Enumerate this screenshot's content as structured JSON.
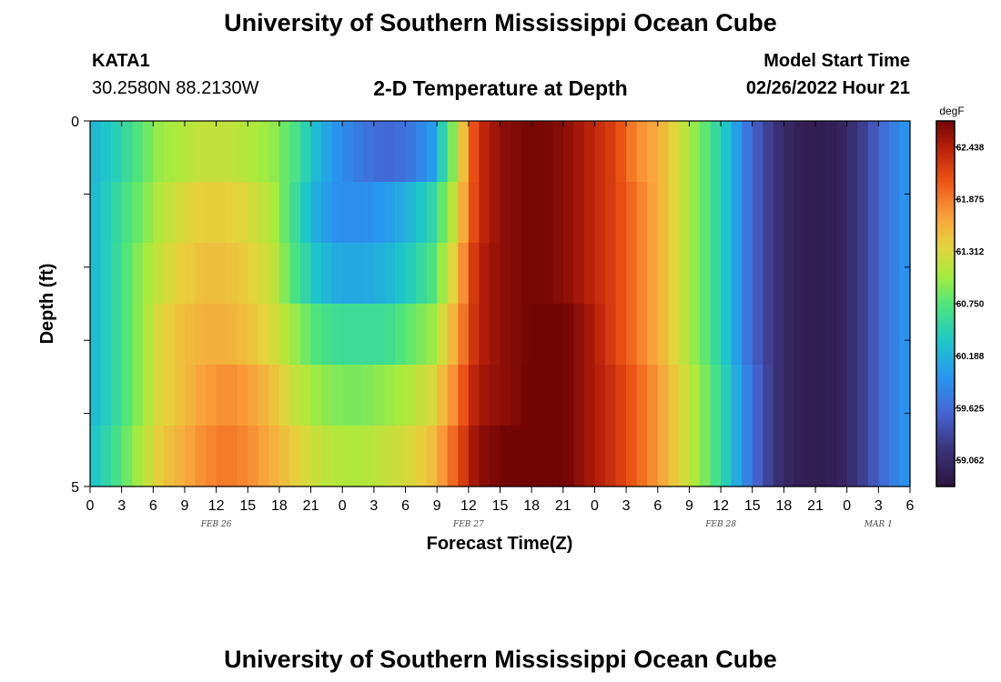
{
  "page": {
    "title_top": "University of Southern Mississippi Ocean Cube",
    "title_bottom": "University of Southern Mississippi Ocean Cube",
    "station": "KATA1",
    "coords": "30.2580N  88.2130W",
    "subtitle": "2-D Temperature at Depth",
    "model_start_label": "Model Start Time",
    "model_start_value": "02/26/2022 Hour 21"
  },
  "chart_data": {
    "type": "heatmap",
    "title": "2-D Temperature at Depth",
    "xlabel": "Forecast Time(Z)",
    "ylabel": "Depth (ft)",
    "x_tick_labels": [
      "0",
      "3",
      "6",
      "9",
      "12",
      "15",
      "18",
      "21",
      "0",
      "3",
      "6",
      "9",
      "12",
      "15",
      "18",
      "21",
      "0",
      "3",
      "6",
      "9",
      "12",
      "15",
      "18",
      "21",
      "0",
      "3",
      "6"
    ],
    "date_labels": [
      {
        "label": "FEB 26",
        "tick_index": 4
      },
      {
        "label": "FEB 27",
        "tick_index": 12
      },
      {
        "label": "FEB 28",
        "tick_index": 20
      },
      {
        "label": "MAR 1",
        "tick_index": 25
      }
    ],
    "x_hours": [
      0,
      78
    ],
    "y_tick_labels": [
      "0",
      "5"
    ],
    "ylim": [
      0,
      5
    ],
    "colorbar": {
      "unit": "degF",
      "range": [
        58.78,
        62.72
      ],
      "tick_labels": [
        "62.438",
        "61.875",
        "61.312",
        "60.750",
        "60.188",
        "59.625",
        "59.062"
      ]
    },
    "depth_rows": [
      0,
      1,
      2,
      3,
      4,
      5
    ],
    "grid": [
      [
        60.2,
        60.4,
        60.7,
        61.0,
        61.1,
        61.2,
        61.2,
        61.1,
        61.0,
        60.7,
        60.2,
        59.9,
        59.7,
        59.6,
        59.7,
        60.0,
        61.0,
        62.3,
        62.6,
        62.7,
        62.7,
        62.6,
        62.4,
        62.2,
        61.8,
        61.6,
        61.2,
        60.8,
        60.3,
        59.6,
        59.2,
        58.95,
        58.9,
        59.0,
        59.3,
        59.7,
        60.0
      ],
      [
        60.2,
        60.5,
        60.8,
        61.1,
        61.3,
        61.4,
        61.4,
        61.3,
        61.1,
        60.6,
        60.1,
        59.9,
        59.9,
        60.0,
        60.2,
        60.5,
        61.2,
        62.3,
        62.6,
        62.7,
        62.7,
        62.6,
        62.4,
        62.2,
        61.9,
        61.6,
        61.2,
        60.8,
        60.3,
        59.6,
        59.2,
        58.95,
        58.9,
        59.0,
        59.3,
        59.7,
        60.0
      ],
      [
        60.2,
        60.5,
        60.9,
        61.2,
        61.4,
        61.5,
        61.5,
        61.4,
        61.2,
        60.7,
        60.3,
        60.1,
        60.1,
        60.2,
        60.4,
        60.7,
        61.4,
        62.4,
        62.6,
        62.7,
        62.7,
        62.6,
        62.4,
        62.2,
        61.9,
        61.6,
        61.2,
        60.8,
        60.3,
        59.6,
        59.2,
        58.95,
        58.9,
        59.0,
        59.3,
        59.7,
        60.0
      ],
      [
        60.2,
        60.5,
        60.9,
        61.3,
        61.5,
        61.6,
        61.6,
        61.5,
        61.3,
        61.0,
        60.7,
        60.6,
        60.6,
        60.6,
        60.8,
        61.0,
        61.6,
        62.4,
        62.6,
        62.7,
        62.75,
        62.7,
        62.5,
        62.2,
        61.9,
        61.6,
        61.2,
        60.8,
        60.3,
        59.6,
        59.2,
        58.95,
        58.9,
        59.0,
        59.3,
        59.7,
        60.0
      ],
      [
        60.2,
        60.5,
        60.9,
        61.3,
        61.5,
        61.7,
        61.8,
        61.7,
        61.5,
        61.2,
        61.0,
        60.9,
        60.9,
        61.0,
        61.1,
        61.3,
        61.8,
        62.5,
        62.6,
        62.7,
        62.8,
        62.7,
        62.5,
        62.3,
        62.0,
        61.7,
        61.3,
        60.9,
        60.4,
        59.7,
        59.2,
        58.95,
        58.9,
        59.0,
        59.3,
        59.7,
        60.0
      ],
      [
        60.3,
        60.6,
        61.0,
        61.4,
        61.6,
        61.8,
        61.9,
        61.8,
        61.6,
        61.4,
        61.2,
        61.1,
        61.1,
        61.2,
        61.3,
        61.5,
        62.0,
        62.6,
        62.7,
        62.8,
        62.8,
        62.7,
        62.5,
        62.3,
        62.0,
        61.7,
        61.3,
        60.9,
        60.4,
        59.7,
        59.2,
        58.95,
        58.9,
        59.0,
        59.3,
        59.7,
        60.0
      ]
    ]
  }
}
